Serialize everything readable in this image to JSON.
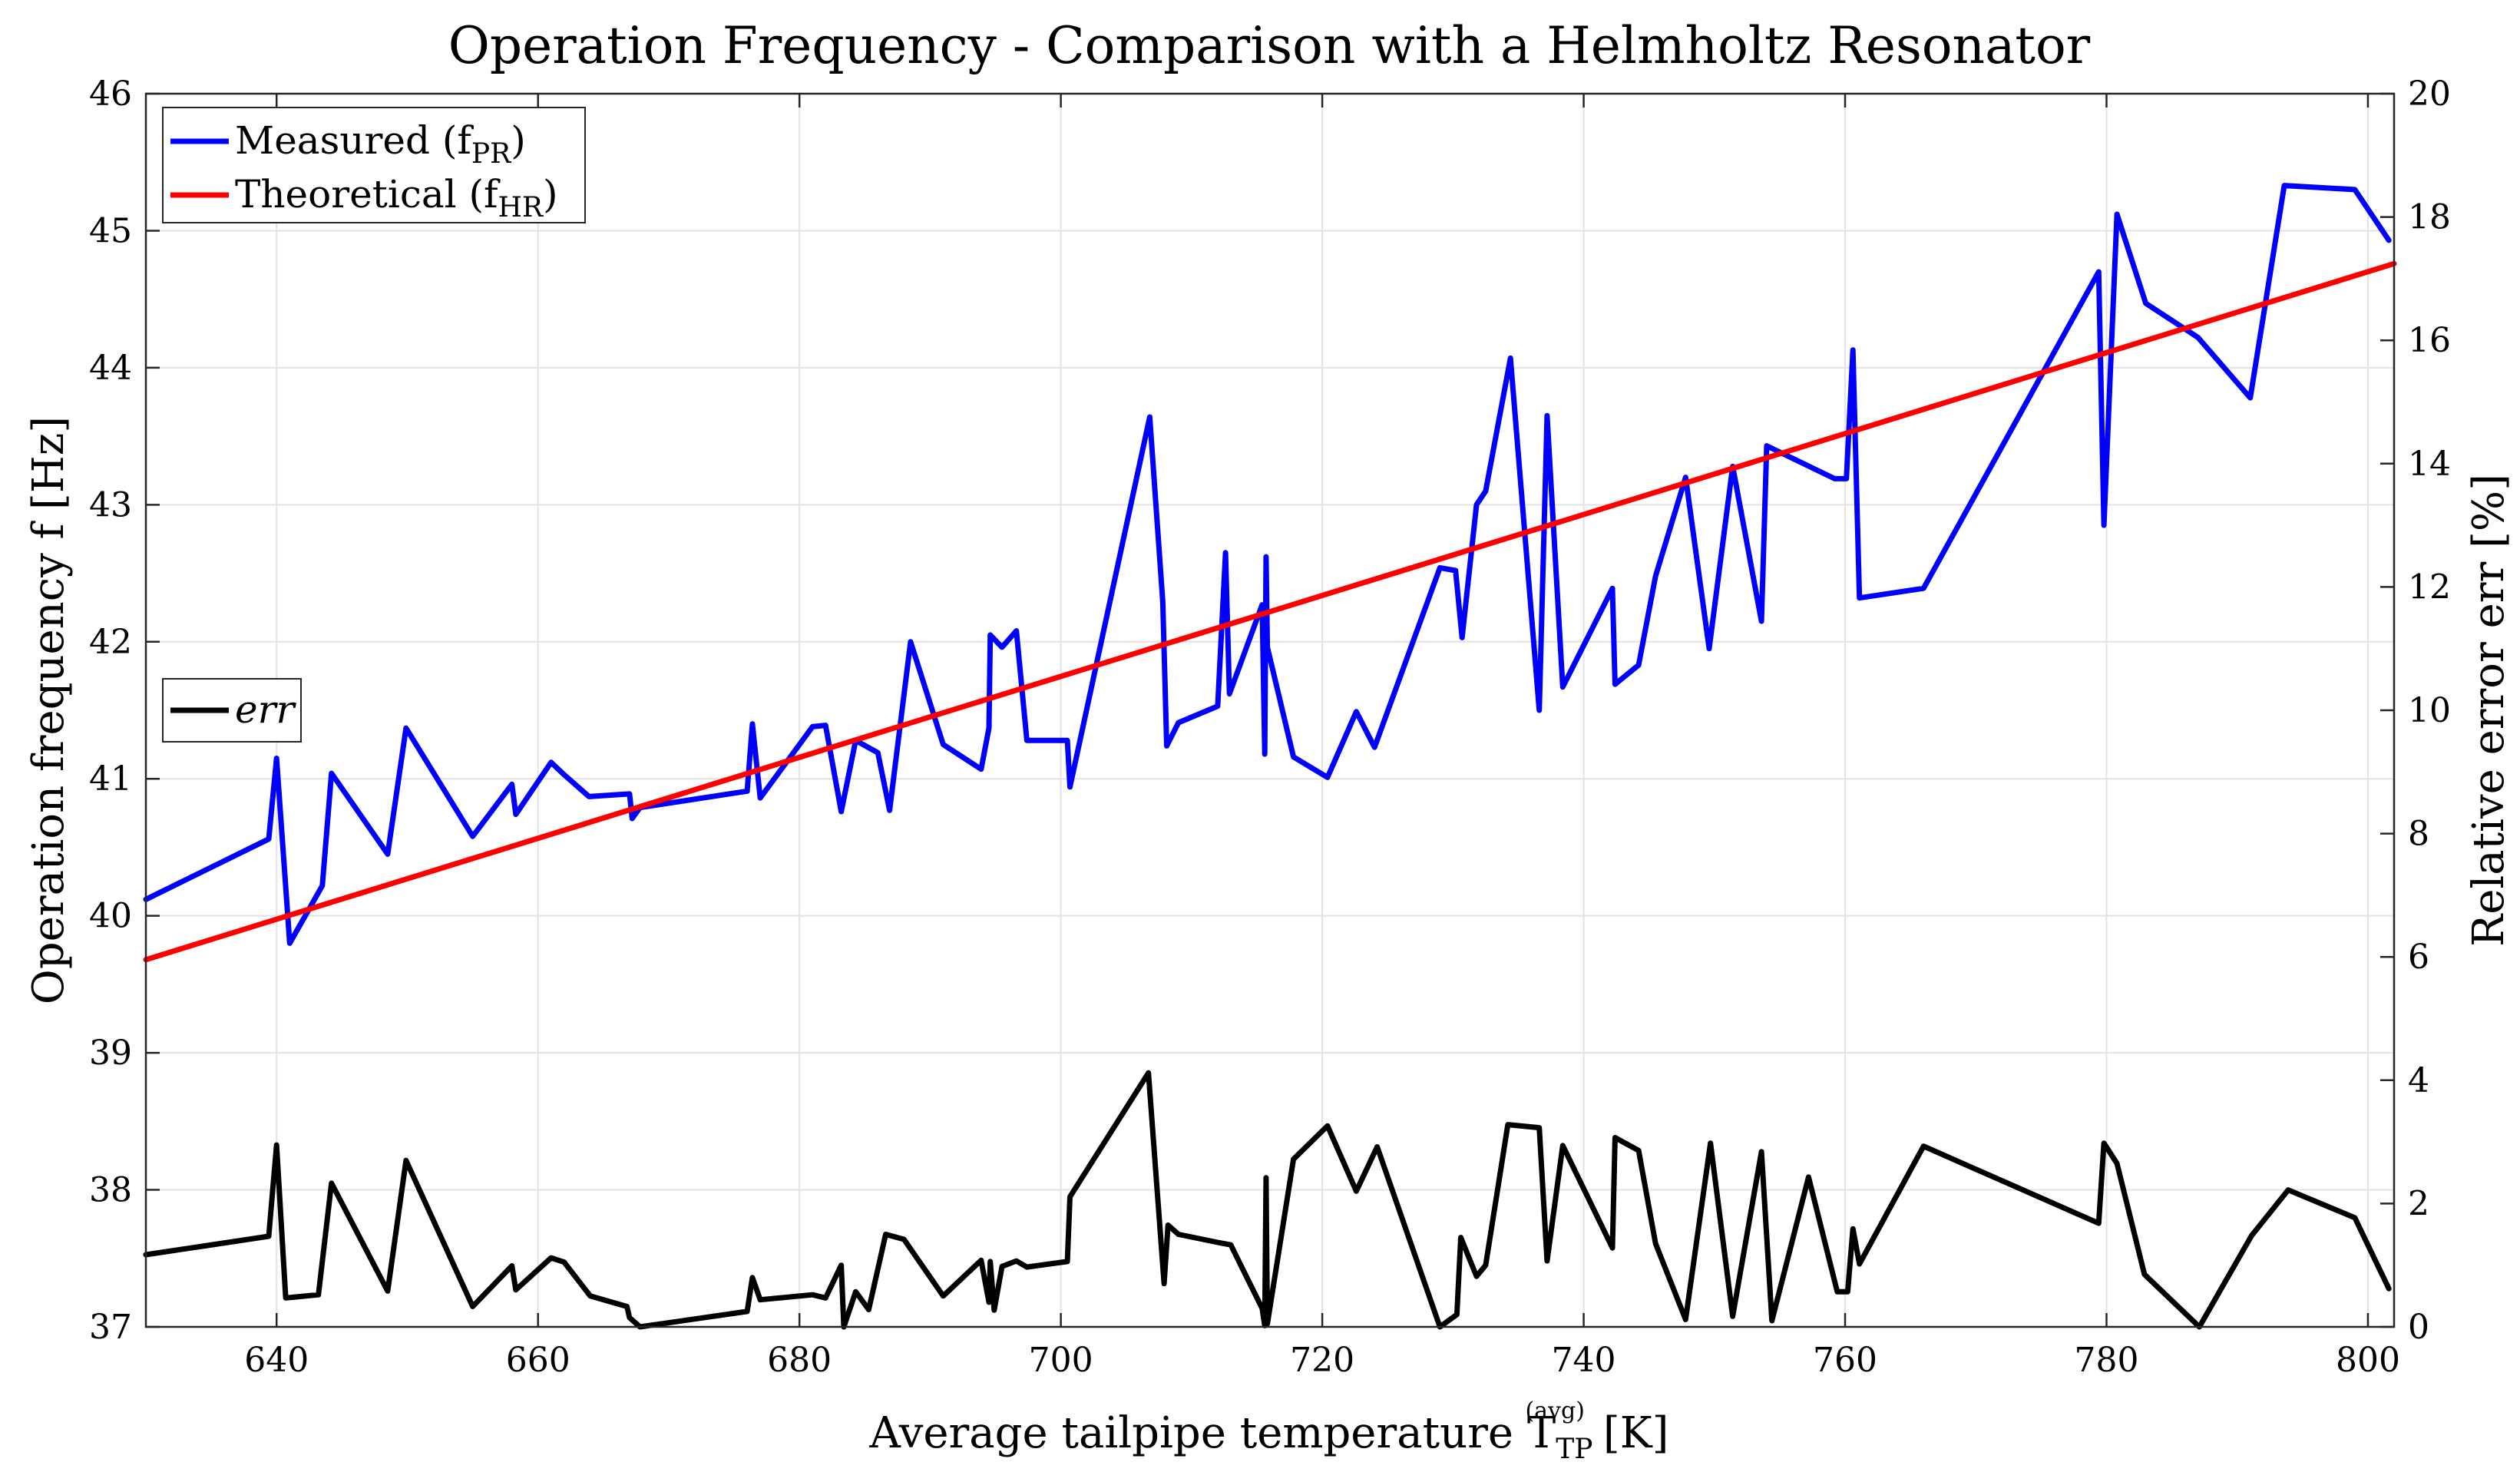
{
  "chart_data": {
    "type": "line",
    "title": "Operation Frequency - Comparison with a Helmholtz Resonator",
    "xlabel": "Average tailpipe temperature T",
    "xlabel_sub": "TP",
    "xlabel_sup": "(avg)",
    "xlabel_unit": "[K]",
    "ylabel": "Operation frequency f  [Hz]",
    "y2label": "Relative error err  [%]",
    "xlim": [
      630,
      802
    ],
    "ylim": [
      37,
      46
    ],
    "y2lim": [
      0,
      20
    ],
    "xticks": [
      640,
      660,
      680,
      700,
      720,
      740,
      760,
      780,
      800
    ],
    "yticks": [
      37,
      38,
      39,
      40,
      41,
      42,
      43,
      44,
      45,
      46
    ],
    "y2ticks": [
      0,
      2,
      4,
      6,
      8,
      10,
      12,
      14,
      16,
      18,
      20
    ],
    "grid": true,
    "legend_main_position": "top-left",
    "legend_err_position": "middle-left",
    "series": [
      {
        "name": "Measured (f",
        "sub": "PR",
        "suffix": ")",
        "axis": "left",
        "color": "#0000ff",
        "x": [
          630,
          639.4,
          640,
          641,
          643.5,
          644.2,
          648.5,
          649.9,
          655,
          658,
          658.3,
          661,
          662,
          663.9,
          667,
          667.2,
          667.8,
          676,
          676.4,
          677,
          681,
          682,
          683.2,
          684.3,
          686,
          686.9,
          688.5,
          691,
          693.9,
          694.5,
          694.6,
          695.5,
          696.6,
          697.4,
          700.5,
          700.7,
          706.8,
          707.8,
          708.1,
          709,
          712,
          712.6,
          712.9,
          715.4,
          715.6,
          715.7,
          715.8,
          717.8,
          720.4,
          722.6,
          724,
          729,
          730.2,
          730.7,
          731.8,
          732.5,
          734.4,
          736.6,
          737.2,
          738.4,
          742.2,
          742.4,
          744.2,
          745.5,
          747.8,
          749.6,
          751.4,
          753.6,
          754,
          759.2,
          760.1,
          760.6,
          761.1,
          766,
          779.4,
          779.8,
          780.8,
          783,
          787,
          791,
          793.6,
          799,
          801.6
        ],
        "values": [
          40.12,
          40.56,
          41.15,
          39.8,
          40.22,
          41.04,
          40.45,
          41.37,
          40.58,
          40.96,
          40.74,
          41.12,
          41.03,
          40.87,
          40.89,
          40.71,
          40.79,
          40.91,
          41.4,
          40.86,
          41.38,
          41.39,
          40.76,
          41.28,
          41.19,
          40.77,
          42.0,
          41.25,
          41.07,
          41.37,
          42.05,
          41.96,
          42.08,
          41.28,
          41.28,
          40.94,
          43.64,
          42.29,
          41.24,
          41.41,
          41.53,
          42.65,
          41.62,
          42.27,
          41.18,
          42.62,
          41.96,
          41.16,
          41.01,
          41.49,
          41.23,
          42.54,
          42.52,
          42.03,
          43.0,
          43.1,
          44.07,
          41.5,
          43.65,
          41.67,
          42.39,
          41.69,
          41.83,
          42.48,
          43.2,
          41.95,
          43.28,
          42.15,
          43.43,
          43.19,
          43.19,
          44.13,
          42.32,
          42.39,
          44.7,
          42.85,
          45.12,
          44.47,
          44.22,
          43.78,
          45.33,
          45.3,
          44.93
        ]
      },
      {
        "name": "Theoretical (f",
        "sub": "HR",
        "suffix": ")",
        "axis": "left",
        "color": "#ff0000",
        "x": [
          630,
          802
        ],
        "values": [
          39.68,
          44.76
        ]
      },
      {
        "name": "err",
        "axis": "right",
        "color": "#000000",
        "x": [
          630,
          639.4,
          640,
          640.7,
          643.2,
          644.2,
          648.5,
          649.9,
          655,
          658,
          658.3,
          661,
          662,
          664,
          666.8,
          667,
          667.8,
          676,
          676.4,
          677,
          681,
          682,
          683.2,
          683.4,
          684.3,
          685.3,
          686.6,
          688,
          691,
          693.9,
          694.5,
          694.6,
          694.9,
          695.5,
          696.6,
          697.4,
          700.5,
          700.7,
          706.7,
          707.9,
          708.2,
          709,
          712,
          713,
          715.4,
          715.6,
          715.7,
          715.8,
          717.8,
          720.4,
          722.6,
          724.2,
          729,
          730.3,
          730.6,
          731.8,
          732.5,
          734.2,
          736.6,
          737.2,
          738.4,
          742.2,
          742.4,
          744.2,
          745.5,
          747.8,
          749.7,
          751.4,
          753.6,
          754.4,
          757.2,
          759.4,
          760.2,
          760.6,
          761.1,
          766,
          779.4,
          779.8,
          780.8,
          782.9,
          787.1,
          791.1,
          793.9,
          799,
          801.6
        ],
        "values": [
          1.17,
          1.47,
          2.95,
          0.47,
          0.52,
          2.33,
          0.58,
          2.7,
          0.33,
          0.99,
          0.6,
          1.12,
          1.05,
          0.5,
          0.33,
          0.15,
          0.0,
          0.25,
          0.8,
          0.44,
          0.52,
          0.47,
          1.0,
          0.0,
          0.57,
          0.28,
          1.5,
          1.42,
          0.5,
          1.08,
          0.4,
          1.06,
          0.27,
          0.98,
          1.07,
          0.97,
          1.06,
          2.11,
          4.12,
          0.7,
          1.65,
          1.5,
          1.37,
          1.33,
          0.3,
          0.02,
          2.42,
          0.05,
          2.72,
          3.26,
          2.2,
          2.92,
          0.0,
          0.2,
          1.45,
          0.82,
          1.0,
          3.28,
          3.23,
          1.07,
          2.94,
          1.28,
          3.07,
          2.86,
          1.35,
          0.12,
          2.98,
          0.17,
          2.84,
          0.1,
          2.43,
          0.57,
          0.57,
          1.59,
          1.02,
          2.93,
          1.68,
          2.98,
          2.65,
          0.85,
          0.0,
          1.48,
          2.22,
          1.77,
          0.62
        ]
      }
    ]
  }
}
